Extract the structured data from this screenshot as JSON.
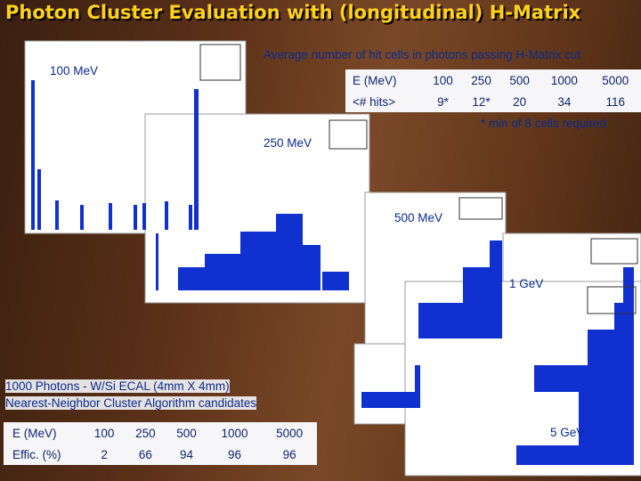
{
  "header": {
    "title": "Photon Cluster Evaluation with (longitudinal) H-Matrix",
    "subtitle": "Average number of hit cells in photons passing H-Matrix cut"
  },
  "panels": [
    {
      "label": "100 MeV"
    },
    {
      "label": "250 MeV"
    },
    {
      "label": "500 MeV"
    },
    {
      "label": "1 GeV"
    },
    {
      "label": "5 GeV"
    }
  ],
  "hits_table": {
    "rows": [
      [
        "E (MeV)",
        100,
        250,
        500,
        1000,
        5000
      ],
      [
        "<# hits>",
        "9*",
        "12*",
        20,
        34,
        116
      ]
    ],
    "note": "* min of 8 cells required"
  },
  "notes": [
    "1000 Photons - W/Si ECAL (4mm X 4mm)",
    "Nearest-Neighbor Cluster Algorithm candidates"
  ],
  "eff_table": {
    "rows": [
      [
        "E (MeV)",
        100,
        250,
        500,
        1000,
        5000
      ],
      [
        "Effic. (%)",
        2,
        66,
        94,
        96,
        96
      ]
    ]
  }
}
